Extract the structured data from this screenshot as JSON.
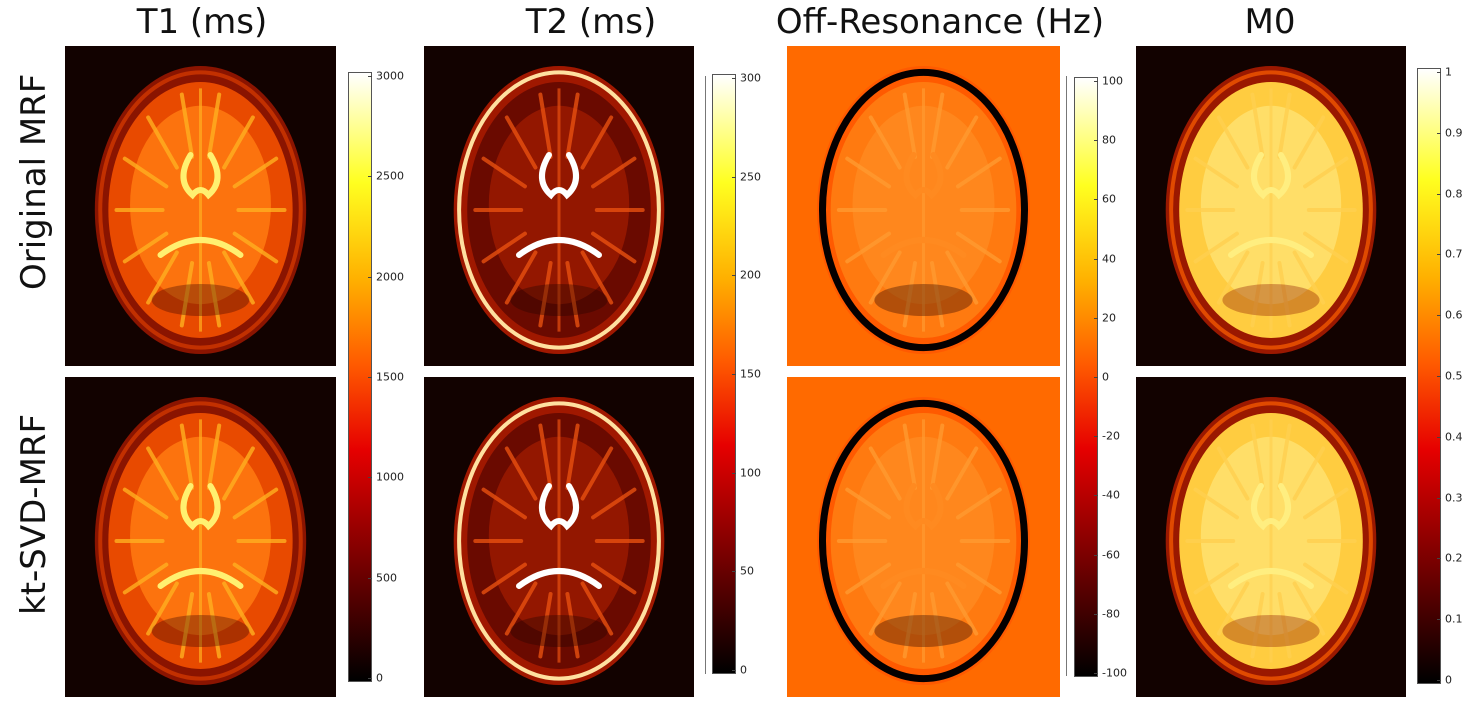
{
  "columns": [
    {
      "title": "T1 (ms)",
      "colorbar": {
        "ticks": [
          "3000",
          "2500",
          "2000",
          "1500",
          "1000",
          "500",
          "0"
        ],
        "scheme": "hot"
      }
    },
    {
      "title": "T2 (ms)",
      "colorbar": {
        "ticks": [
          "300",
          "250",
          "200",
          "150",
          "100",
          "50",
          "0"
        ],
        "scheme": "hot"
      }
    },
    {
      "title": "Off-Resonance (Hz)",
      "colorbar": {
        "ticks": [
          "100",
          "80",
          "60",
          "40",
          "20",
          "0",
          "-20",
          "-40",
          "-60",
          "-80",
          "-100"
        ],
        "scheme": "hot"
      }
    },
    {
      "title": "M0",
      "colorbar": {
        "ticks": [
          "1",
          "0.9",
          "0.8",
          "0.7",
          "0.6",
          "0.5",
          "0.4",
          "0.3",
          "0.2",
          "0.1",
          "0"
        ],
        "scheme": "hot"
      }
    }
  ],
  "rows": [
    {
      "label": "Original MRF"
    },
    {
      "label": "kt-SVD-MRF"
    }
  ],
  "colors": {
    "background_dark": "#0f0200",
    "offres_background": "#ff6a00",
    "hot_low": "#000000",
    "hot_mid": "#ff2a00",
    "hot_high": "#ffffff"
  },
  "panels": [
    {
      "name": "t1-original-map",
      "kind": "t1"
    },
    {
      "name": "t2-original-map",
      "kind": "t2"
    },
    {
      "name": "offres-original-map",
      "kind": "offres"
    },
    {
      "name": "m0-original-map",
      "kind": "m0"
    },
    {
      "name": "t1-ktsvd-map",
      "kind": "t1"
    },
    {
      "name": "t2-ktsvd-map",
      "kind": "t2"
    },
    {
      "name": "offres-ktsvd-map",
      "kind": "offres"
    },
    {
      "name": "m0-ktsvd-map",
      "kind": "m0"
    }
  ]
}
